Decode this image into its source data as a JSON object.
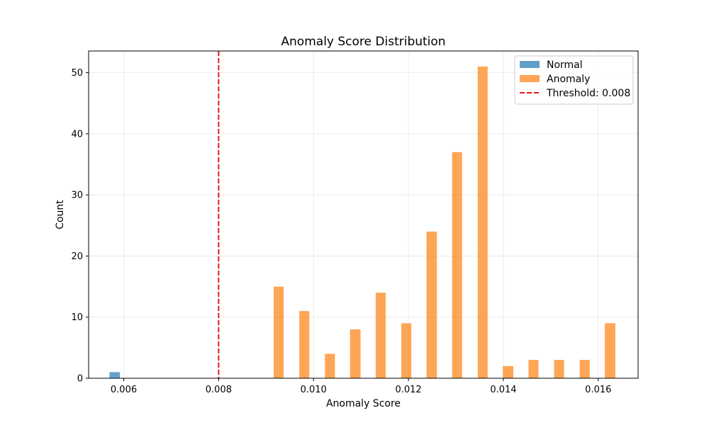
{
  "chart_data": {
    "type": "bar",
    "title": "Anomaly Score Distribution",
    "xlabel": "Anomaly Score",
    "ylabel": "Count",
    "xlim": [
      0.00526,
      0.01684
    ],
    "ylim": [
      0,
      53.55
    ],
    "x_ticks": [
      0.006,
      0.008,
      0.01,
      0.012,
      0.014,
      0.016
    ],
    "x_tick_labels": [
      "0.006",
      "0.008",
      "0.010",
      "0.012",
      "0.014",
      "0.016"
    ],
    "y_ticks": [
      0,
      10,
      20,
      30,
      40,
      50
    ],
    "y_tick_labels": [
      "0",
      "10",
      "20",
      "30",
      "40",
      "50"
    ],
    "grid": true,
    "legend_position": "top-right",
    "series": [
      {
        "name": "Normal",
        "color": "#1f77b4",
        "bins": [
          {
            "left": 0.0057,
            "right": 0.00592,
            "count": 1
          }
        ]
      },
      {
        "name": "Anomaly",
        "color": "#ff7f0e",
        "bins": [
          {
            "left": 0.00916,
            "right": 0.00937,
            "count": 15
          },
          {
            "left": 0.0097,
            "right": 0.00991,
            "count": 11
          },
          {
            "left": 0.01024,
            "right": 0.01045,
            "count": 4
          },
          {
            "left": 0.01077,
            "right": 0.01099,
            "count": 8
          },
          {
            "left": 0.01131,
            "right": 0.01152,
            "count": 14
          },
          {
            "left": 0.01185,
            "right": 0.01206,
            "count": 9
          },
          {
            "left": 0.01238,
            "right": 0.0126,
            "count": 24
          },
          {
            "left": 0.01292,
            "right": 0.01313,
            "count": 37
          },
          {
            "left": 0.01346,
            "right": 0.01367,
            "count": 51
          },
          {
            "left": 0.01399,
            "right": 0.01421,
            "count": 2
          },
          {
            "left": 0.01453,
            "right": 0.01474,
            "count": 3
          },
          {
            "left": 0.01507,
            "right": 0.01528,
            "count": 3
          },
          {
            "left": 0.01561,
            "right": 0.01582,
            "count": 3
          },
          {
            "left": 0.01614,
            "right": 0.01636,
            "count": 9
          }
        ]
      }
    ],
    "threshold": {
      "value": 0.008,
      "label": "Threshold: 0.008",
      "color": "#e8141a"
    }
  }
}
